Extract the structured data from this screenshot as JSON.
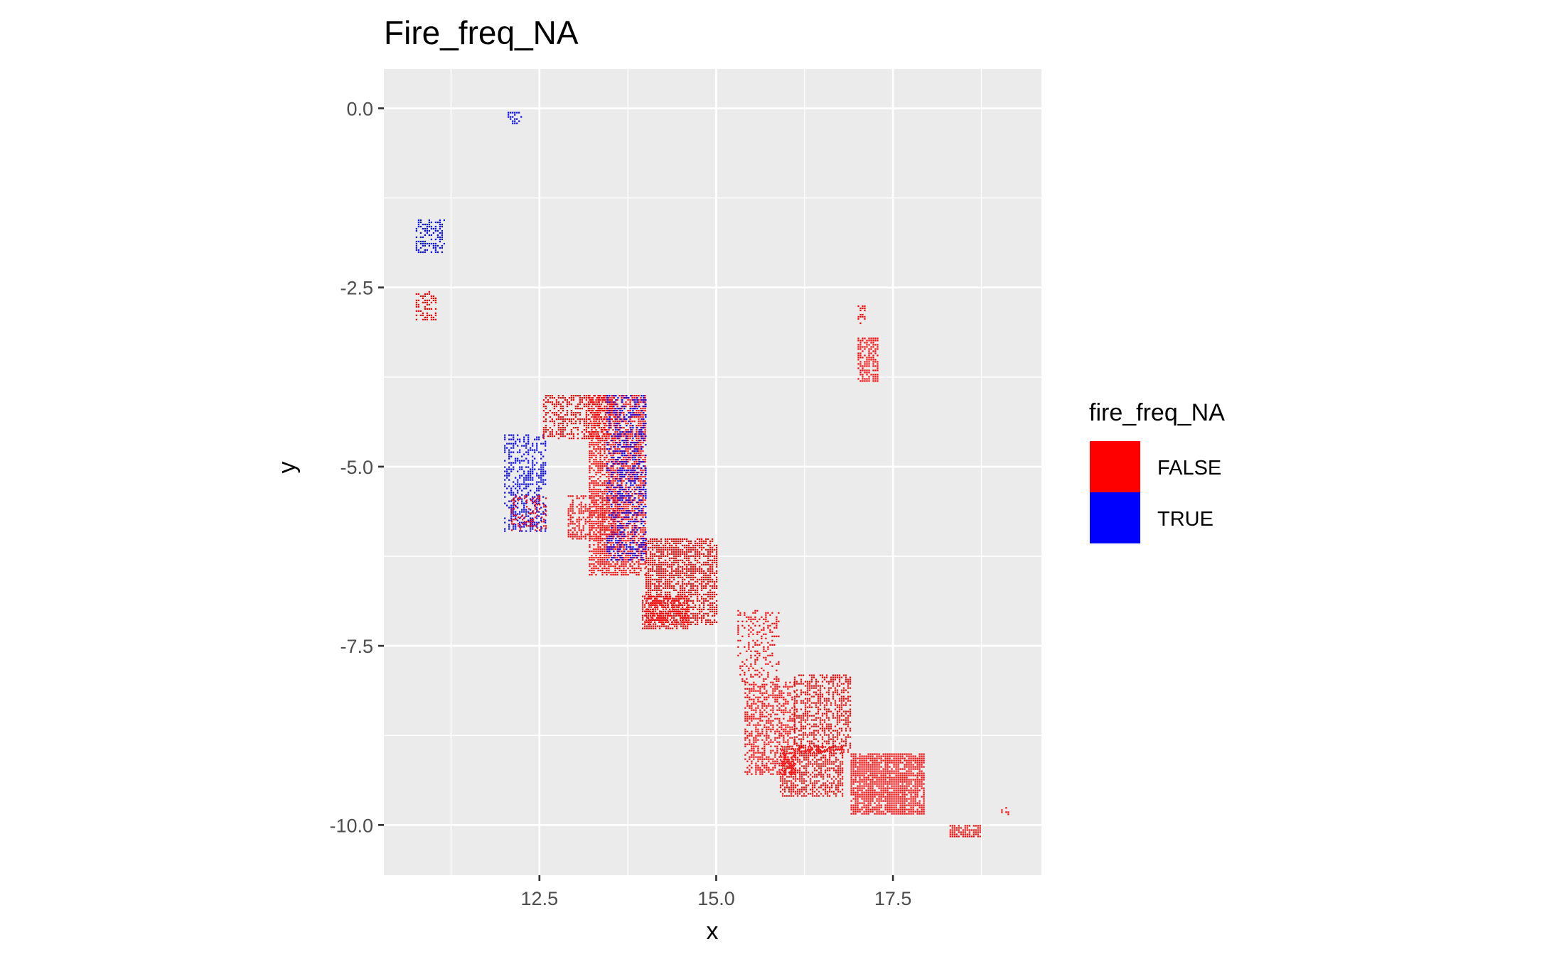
{
  "chart_data": {
    "type": "heatmap",
    "title": "Fire_freq_NA",
    "xlabel": "x",
    "ylabel": "y",
    "xlim": [
      10.3,
      19.6
    ],
    "ylim": [
      -10.7,
      0.55
    ],
    "x_ticks": [
      12.5,
      15.0,
      17.5
    ],
    "x_tick_labels": [
      "12.5",
      "15.0",
      "17.5"
    ],
    "y_ticks": [
      0.0,
      -2.5,
      -5.0,
      -7.5,
      -10.0
    ],
    "y_tick_labels": [
      "0.0",
      "-2.5",
      "-5.0",
      "-7.5",
      "-10.0"
    ],
    "grid": true,
    "panel_background": "#ebebeb",
    "legend": {
      "title": "fire_freq_NA",
      "position": "right",
      "entries": [
        {
          "label": "FALSE",
          "color": "#ff0000"
        },
        {
          "label": "TRUE",
          "color": "#0000ff"
        }
      ]
    },
    "series": [
      {
        "name": "FALSE",
        "color": "#ff0000"
      },
      {
        "name": "TRUE",
        "color": "#0000ff"
      }
    ],
    "regions": [
      {
        "series": "TRUE",
        "x": [
          10.75,
          11.15
        ],
        "y": [
          -2.0,
          -1.55
        ],
        "density": 0.4
      },
      {
        "series": "FALSE",
        "x": [
          10.75,
          11.05
        ],
        "y": [
          -2.95,
          -2.55
        ],
        "density": 0.45
      },
      {
        "series": "TRUE",
        "x": [
          12.05,
          12.25
        ],
        "y": [
          -0.2,
          -0.05
        ],
        "density": 0.3
      },
      {
        "series": "TRUE",
        "x": [
          12.0,
          12.6
        ],
        "y": [
          -5.9,
          -4.55
        ],
        "density": 0.35
      },
      {
        "series": "FALSE",
        "x": [
          12.1,
          12.6
        ],
        "y": [
          -5.9,
          -5.4
        ],
        "density": 0.25
      },
      {
        "series": "FALSE",
        "x": [
          12.55,
          13.55
        ],
        "y": [
          -4.6,
          -4.0
        ],
        "density": 0.45
      },
      {
        "series": "FALSE",
        "x": [
          13.2,
          14.0
        ],
        "y": [
          -6.5,
          -4.0
        ],
        "density": 0.6
      },
      {
        "series": "TRUE",
        "x": [
          13.45,
          14.0
        ],
        "y": [
          -6.3,
          -4.0
        ],
        "density": 0.3
      },
      {
        "series": "FALSE",
        "x": [
          12.9,
          13.6
        ],
        "y": [
          -6.0,
          -5.4
        ],
        "density": 0.4
      },
      {
        "series": "FALSE",
        "x": [
          14.0,
          15.0
        ],
        "y": [
          -7.2,
          -6.0
        ],
        "density": 0.6
      },
      {
        "series": "FALSE",
        "x": [
          13.95,
          14.6
        ],
        "y": [
          -7.25,
          -6.8
        ],
        "density": 0.5
      },
      {
        "series": "FALSE",
        "x": [
          15.3,
          15.9
        ],
        "y": [
          -8.0,
          -7.0
        ],
        "density": 0.18
      },
      {
        "series": "FALSE",
        "x": [
          15.4,
          16.1
        ],
        "y": [
          -9.3,
          -8.0
        ],
        "density": 0.45
      },
      {
        "series": "FALSE",
        "x": [
          16.1,
          16.9
        ],
        "y": [
          -9.0,
          -7.9
        ],
        "density": 0.45
      },
      {
        "series": "FALSE",
        "x": [
          15.9,
          16.8
        ],
        "y": [
          -9.6,
          -8.9
        ],
        "density": 0.55
      },
      {
        "series": "FALSE",
        "x": [
          16.9,
          17.95
        ],
        "y": [
          -9.85,
          -9.0
        ],
        "density": 0.75
      },
      {
        "series": "FALSE",
        "x": [
          17.0,
          17.3
        ],
        "y": [
          -3.8,
          -3.2
        ],
        "density": 0.6
      },
      {
        "series": "FALSE",
        "x": [
          17.0,
          17.1
        ],
        "y": [
          -3.0,
          -2.75
        ],
        "density": 0.4
      },
      {
        "series": "FALSE",
        "x": [
          18.3,
          18.75
        ],
        "y": [
          -10.15,
          -10.0
        ],
        "density": 0.7
      },
      {
        "series": "FALSE",
        "x": [
          19.0,
          19.15
        ],
        "y": [
          -9.85,
          -9.75
        ],
        "density": 0.3
      }
    ]
  }
}
